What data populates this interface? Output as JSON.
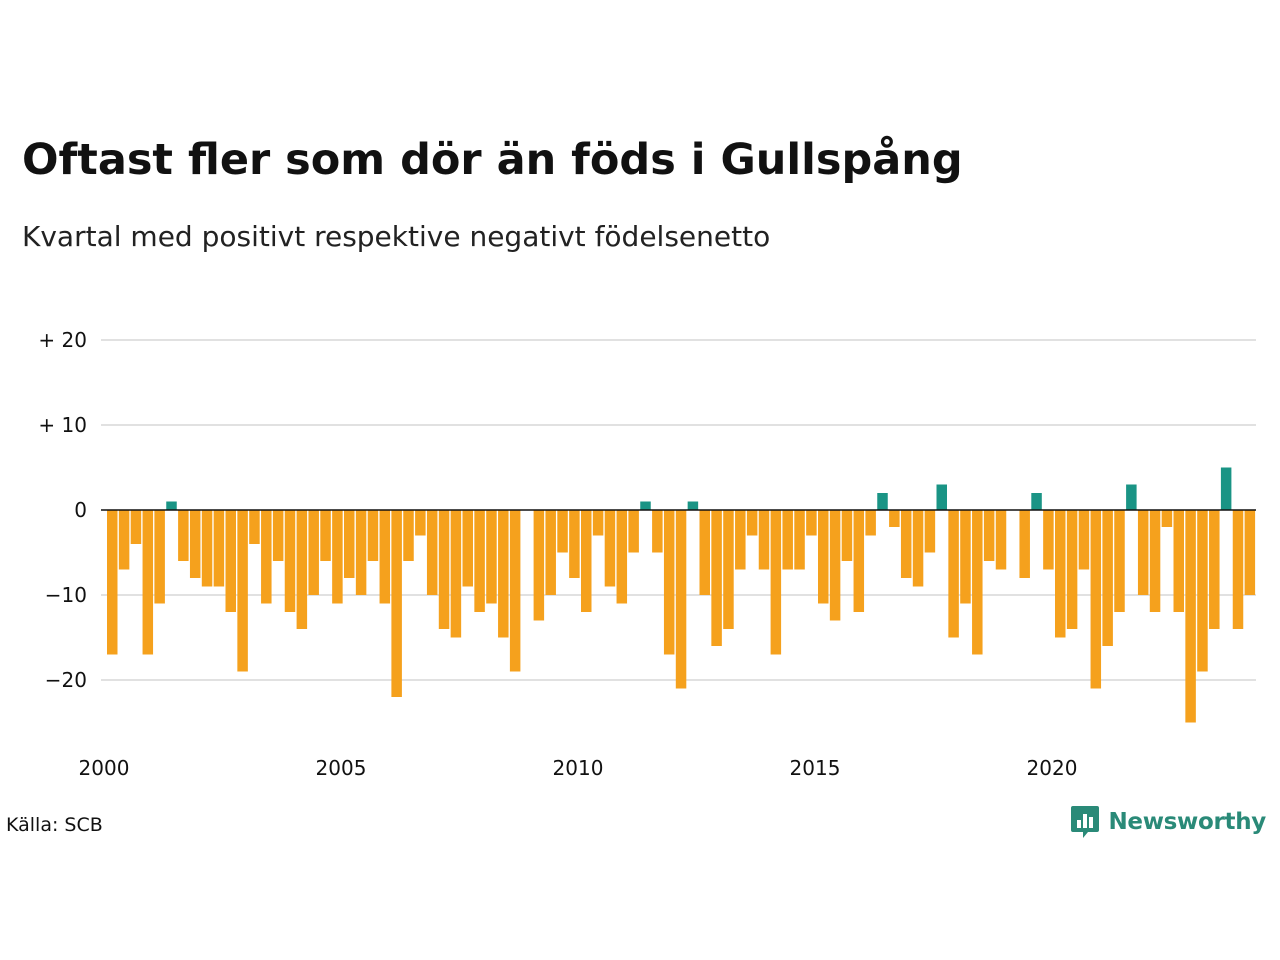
{
  "header": {
    "title": "Oftast fler som dör än föds i Gullspång",
    "subtitle": "Kvartal med positivt respektive negativt födelsenetto"
  },
  "footer": {
    "source": "Källa: SCB",
    "logo_text": "Newsworthy",
    "logo_icon": "newsworthy-logo-icon"
  },
  "colors": {
    "positive": "#1a9485",
    "negative": "#f5a11d",
    "grid": "#e1e1e1",
    "zero_line": "#111111",
    "brand": "#2a8a78"
  },
  "chart_data": {
    "type": "bar",
    "title": "Oftast fler som dör än föds i Gullspång",
    "subtitle": "Kvartal med positivt respektive negativt födelsenetto",
    "xlabel": "",
    "ylabel": "",
    "x_start": "2000 Q1",
    "x_ticks": [
      "2000",
      "2005",
      "2010",
      "2015",
      "2020"
    ],
    "y_ticks": [
      {
        "value": 20,
        "label": "+ 20"
      },
      {
        "value": 10,
        "label": "+ 10"
      },
      {
        "value": 0,
        "label": "0"
      },
      {
        "value": -10,
        "label": "−10"
      },
      {
        "value": -20,
        "label": "−20"
      }
    ],
    "ylim": [
      -26,
      20
    ],
    "grid": true,
    "legend": "none",
    "values": [
      -17,
      -7,
      -4,
      -17,
      -11,
      1,
      -6,
      -8,
      -9,
      -9,
      -12,
      -19,
      -4,
      -11,
      -6,
      -12,
      -14,
      -10,
      -6,
      -11,
      -8,
      -10,
      -6,
      -11,
      -22,
      -6,
      -3,
      -10,
      -14,
      -15,
      -9,
      -12,
      -11,
      -15,
      -19,
      0,
      -13,
      -10,
      -5,
      -8,
      -12,
      -3,
      -9,
      -11,
      -5,
      1,
      -5,
      -17,
      -21,
      1,
      -10,
      -16,
      -14,
      -7,
      -3,
      -7,
      -17,
      -7,
      -7,
      -3,
      -11,
      -13,
      -6,
      -12,
      -3,
      2,
      -2,
      -8,
      -9,
      -5,
      3,
      -15,
      -11,
      -17,
      -6,
      -7,
      0,
      -8,
      2,
      -7,
      -15,
      -14,
      -7,
      -21,
      -16,
      -12,
      3,
      -10,
      -12,
      -2,
      -12,
      -25,
      -19,
      -14,
      5,
      -14,
      -10
    ]
  }
}
